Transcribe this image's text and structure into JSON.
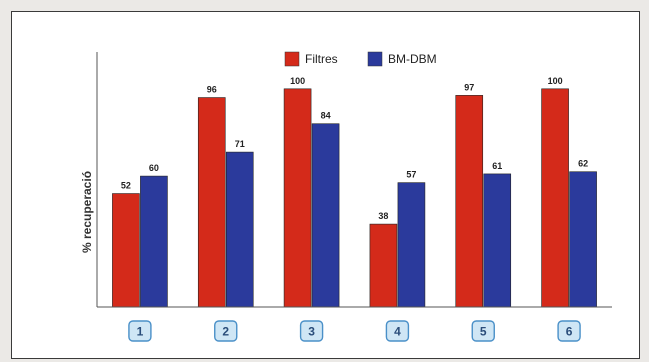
{
  "chart_data": {
    "type": "bar",
    "categories": [
      "1",
      "2",
      "3",
      "4",
      "5",
      "6"
    ],
    "series": [
      {
        "name": "Filtres",
        "values": [
          52,
          96,
          100,
          38,
          97,
          100
        ],
        "color": "#d42a1a"
      },
      {
        "name": "BM-DBM",
        "values": [
          60,
          71,
          84,
          57,
          61,
          62
        ],
        "color": "#2b3a9c"
      }
    ],
    "title": "",
    "xlabel": "",
    "ylabel": "% recuperació",
    "ylim": [
      0,
      110
    ],
    "grid": false,
    "legend_position": "top",
    "category_box_color": "#cfe6f5",
    "category_box_border": "#4a90c8"
  }
}
